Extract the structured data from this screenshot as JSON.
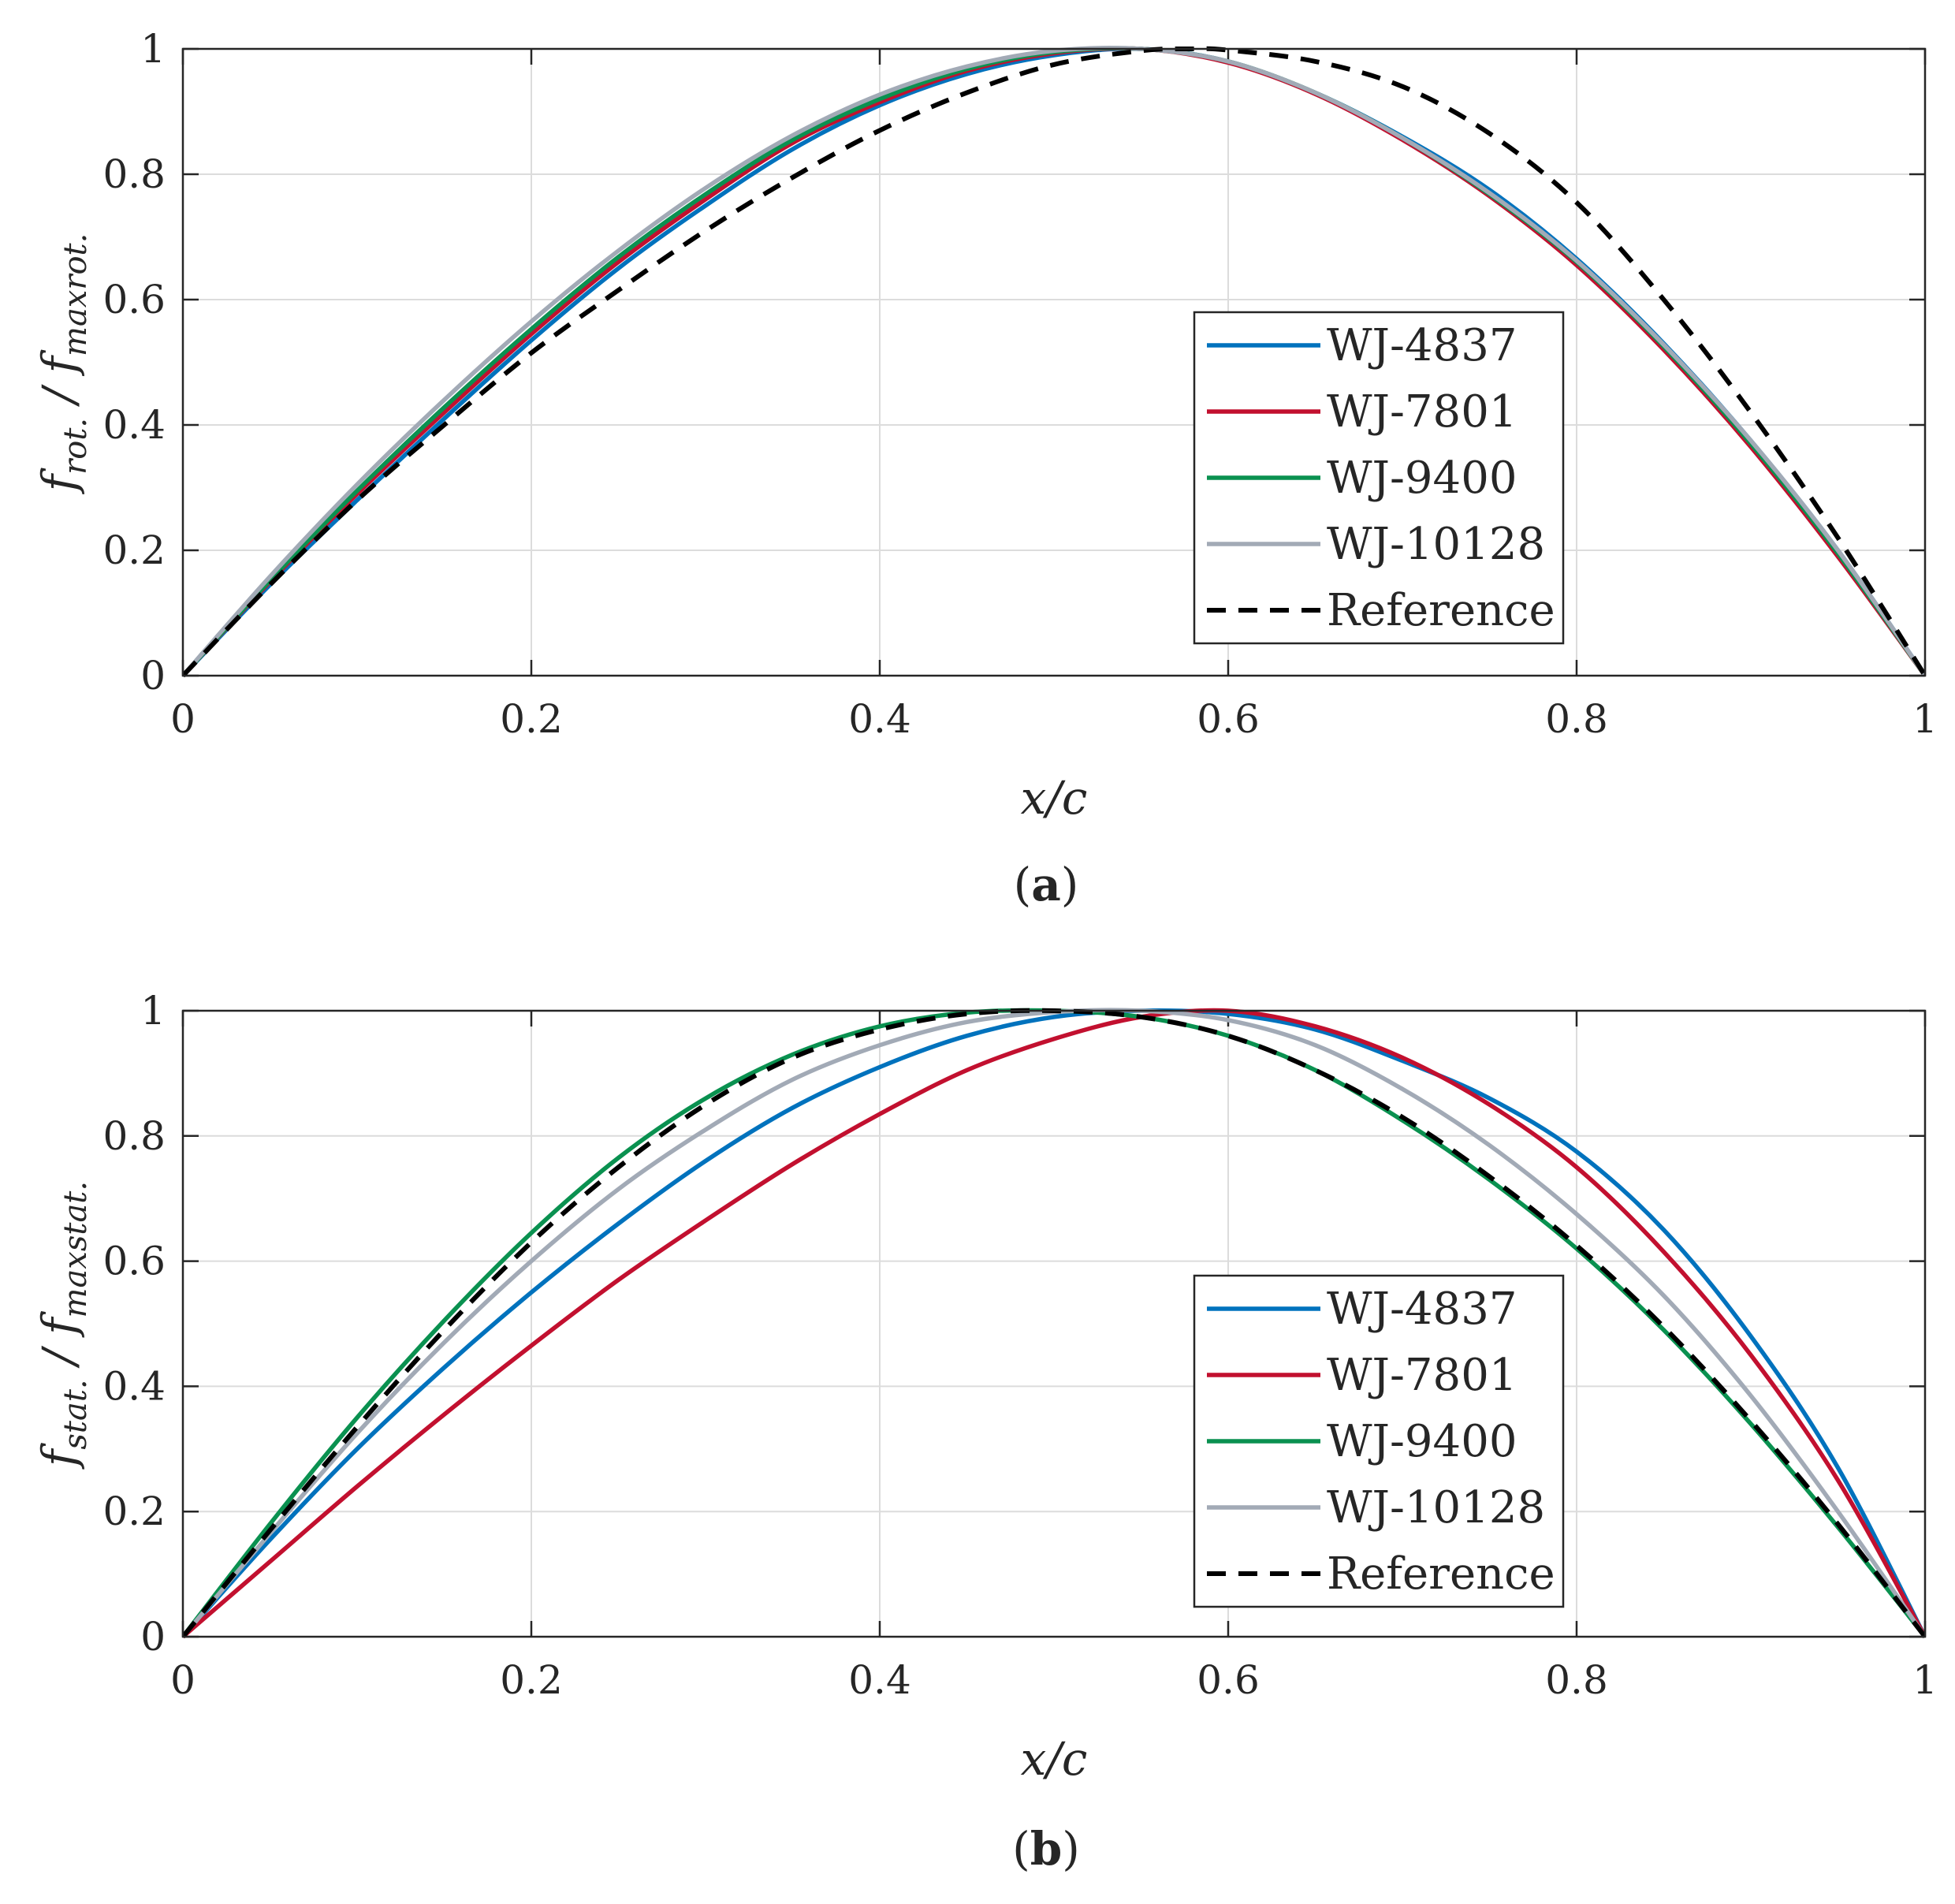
{
  "chart_data": [
    {
      "type": "line",
      "panel_label": "a",
      "xlabel": "x/c",
      "ylabel_main": "f",
      "ylabel_num_sub": "rot.",
      "ylabel_den_sub": "maxrot.",
      "xlim": [
        0,
        1
      ],
      "ylim": [
        0,
        1
      ],
      "xticks": [
        "0",
        "0.2",
        "0.4",
        "0.6",
        "0.8",
        "1"
      ],
      "yticks": [
        "0",
        "0.2",
        "0.4",
        "0.6",
        "0.8",
        "1"
      ],
      "grid": true,
      "legend_position": "lower-right",
      "series": [
        {
          "name": "WJ-4837",
          "color": "#0072BD",
          "dash": "solid",
          "x": [
            0,
            0.05,
            0.1,
            0.15,
            0.2,
            0.25,
            0.3,
            0.35,
            0.4,
            0.45,
            0.5,
            0.55,
            0.6,
            0.65,
            0.7,
            0.75,
            0.8,
            0.85,
            0.9,
            0.95,
            1
          ],
          "y": [
            0,
            0.145,
            0.28,
            0.41,
            0.535,
            0.65,
            0.75,
            0.84,
            0.91,
            0.96,
            0.99,
            1.0,
            0.98,
            0.93,
            0.86,
            0.775,
            0.665,
            0.53,
            0.375,
            0.2,
            0
          ]
        },
        {
          "name": "WJ-7801",
          "color": "#C2102F",
          "dash": "solid",
          "x": [
            0,
            0.05,
            0.1,
            0.15,
            0.2,
            0.25,
            0.3,
            0.35,
            0.4,
            0.45,
            0.5,
            0.55,
            0.6,
            0.65,
            0.7,
            0.75,
            0.8,
            0.85,
            0.9,
            0.95,
            1
          ],
          "y": [
            0,
            0.15,
            0.29,
            0.42,
            0.545,
            0.66,
            0.76,
            0.85,
            0.915,
            0.965,
            0.993,
            1.0,
            0.978,
            0.928,
            0.855,
            0.765,
            0.655,
            0.52,
            0.365,
            0.19,
            0
          ]
        },
        {
          "name": "WJ-9400",
          "color": "#0A9150",
          "dash": "solid",
          "x": [
            0,
            0.05,
            0.1,
            0.15,
            0.2,
            0.25,
            0.3,
            0.35,
            0.4,
            0.45,
            0.5,
            0.55,
            0.6,
            0.65,
            0.7,
            0.75,
            0.8,
            0.85,
            0.9,
            0.95,
            1
          ],
          "y": [
            0,
            0.152,
            0.295,
            0.428,
            0.553,
            0.668,
            0.768,
            0.855,
            0.92,
            0.968,
            0.995,
            1.0,
            0.98,
            0.93,
            0.858,
            0.768,
            0.66,
            0.525,
            0.37,
            0.195,
            0
          ]
        },
        {
          "name": "WJ-10128",
          "color": "#A2AAB6",
          "dash": "solid",
          "x": [
            0,
            0.05,
            0.1,
            0.15,
            0.2,
            0.25,
            0.3,
            0.35,
            0.4,
            0.45,
            0.5,
            0.55,
            0.6,
            0.65,
            0.7,
            0.75,
            0.8,
            0.85,
            0.9,
            0.95,
            1
          ],
          "y": [
            0,
            0.158,
            0.305,
            0.44,
            0.565,
            0.678,
            0.778,
            0.862,
            0.927,
            0.972,
            0.997,
            1.0,
            0.98,
            0.93,
            0.858,
            0.77,
            0.662,
            0.528,
            0.375,
            0.2,
            0
          ]
        },
        {
          "name": "Reference",
          "color": "#000000",
          "dash": "dashed",
          "x": [
            0,
            0.05,
            0.1,
            0.15,
            0.2,
            0.25,
            0.3,
            0.35,
            0.4,
            0.45,
            0.5,
            0.55,
            0.58,
            0.6,
            0.65,
            0.7,
            0.75,
            0.8,
            0.85,
            0.9,
            0.95,
            1
          ],
          "y": [
            0,
            0.145,
            0.28,
            0.4,
            0.515,
            0.615,
            0.71,
            0.795,
            0.87,
            0.93,
            0.975,
            0.997,
            1.0,
            0.998,
            0.98,
            0.94,
            0.865,
            0.755,
            0.6,
            0.42,
            0.22,
            0
          ]
        }
      ]
    },
    {
      "type": "line",
      "panel_label": "b",
      "xlabel": "x/c",
      "ylabel_main": "f",
      "ylabel_num_sub": "stat.",
      "ylabel_den_sub": "maxstat.",
      "xlim": [
        0,
        1
      ],
      "ylim": [
        0,
        1
      ],
      "xticks": [
        "0",
        "0.2",
        "0.4",
        "0.6",
        "0.8",
        "1"
      ],
      "yticks": [
        "0",
        "0.2",
        "0.4",
        "0.6",
        "0.8",
        "1"
      ],
      "grid": true,
      "legend_position": "lower-right",
      "series": [
        {
          "name": "WJ-4837",
          "color": "#0072BD",
          "dash": "solid",
          "x": [
            0,
            0.05,
            0.1,
            0.15,
            0.2,
            0.25,
            0.3,
            0.35,
            0.4,
            0.45,
            0.5,
            0.55,
            0.6,
            0.65,
            0.7,
            0.75,
            0.8,
            0.85,
            0.9,
            0.95,
            1
          ],
          "y": [
            0,
            0.155,
            0.3,
            0.43,
            0.55,
            0.66,
            0.76,
            0.845,
            0.91,
            0.96,
            0.99,
            1.0,
            0.995,
            0.97,
            0.92,
            0.86,
            0.775,
            0.65,
            0.48,
            0.27,
            0
          ]
        },
        {
          "name": "WJ-7801",
          "color": "#C2102F",
          "dash": "solid",
          "x": [
            0,
            0.05,
            0.1,
            0.15,
            0.2,
            0.25,
            0.3,
            0.35,
            0.4,
            0.45,
            0.5,
            0.55,
            0.6,
            0.65,
            0.7,
            0.75,
            0.8,
            0.85,
            0.9,
            0.95,
            1
          ],
          "y": [
            0,
            0.12,
            0.24,
            0.355,
            0.465,
            0.57,
            0.665,
            0.755,
            0.835,
            0.905,
            0.955,
            0.99,
            1.0,
            0.975,
            0.925,
            0.85,
            0.75,
            0.615,
            0.45,
            0.25,
            0
          ]
        },
        {
          "name": "WJ-9400",
          "color": "#0A9150",
          "dash": "solid",
          "x": [
            0,
            0.05,
            0.1,
            0.15,
            0.2,
            0.25,
            0.3,
            0.35,
            0.4,
            0.45,
            0.5,
            0.55,
            0.6,
            0.65,
            0.7,
            0.75,
            0.8,
            0.85,
            0.9,
            0.95,
            1
          ],
          "y": [
            0,
            0.18,
            0.35,
            0.505,
            0.645,
            0.765,
            0.86,
            0.93,
            0.975,
            0.997,
            1.0,
            0.99,
            0.96,
            0.905,
            0.825,
            0.73,
            0.62,
            0.49,
            0.34,
            0.175,
            0
          ]
        },
        {
          "name": "WJ-10128",
          "color": "#A2AAB6",
          "dash": "solid",
          "x": [
            0,
            0.05,
            0.1,
            0.15,
            0.2,
            0.25,
            0.3,
            0.35,
            0.4,
            0.45,
            0.5,
            0.55,
            0.6,
            0.65,
            0.7,
            0.75,
            0.8,
            0.85,
            0.9,
            0.95,
            1
          ],
          "y": [
            0,
            0.165,
            0.325,
            0.47,
            0.6,
            0.715,
            0.81,
            0.89,
            0.945,
            0.982,
            0.998,
            1.0,
            0.985,
            0.945,
            0.875,
            0.785,
            0.675,
            0.545,
            0.385,
            0.2,
            0
          ]
        },
        {
          "name": "Reference",
          "color": "#000000",
          "dash": "dashed",
          "x": [
            0,
            0.05,
            0.1,
            0.15,
            0.2,
            0.25,
            0.3,
            0.35,
            0.4,
            0.45,
            0.5,
            0.55,
            0.6,
            0.65,
            0.7,
            0.75,
            0.8,
            0.85,
            0.9,
            0.95,
            1
          ],
          "y": [
            0,
            0.17,
            0.335,
            0.49,
            0.63,
            0.75,
            0.85,
            0.925,
            0.97,
            0.995,
            1.0,
            0.99,
            0.96,
            0.905,
            0.83,
            0.735,
            0.625,
            0.495,
            0.345,
            0.18,
            0
          ]
        }
      ]
    }
  ]
}
